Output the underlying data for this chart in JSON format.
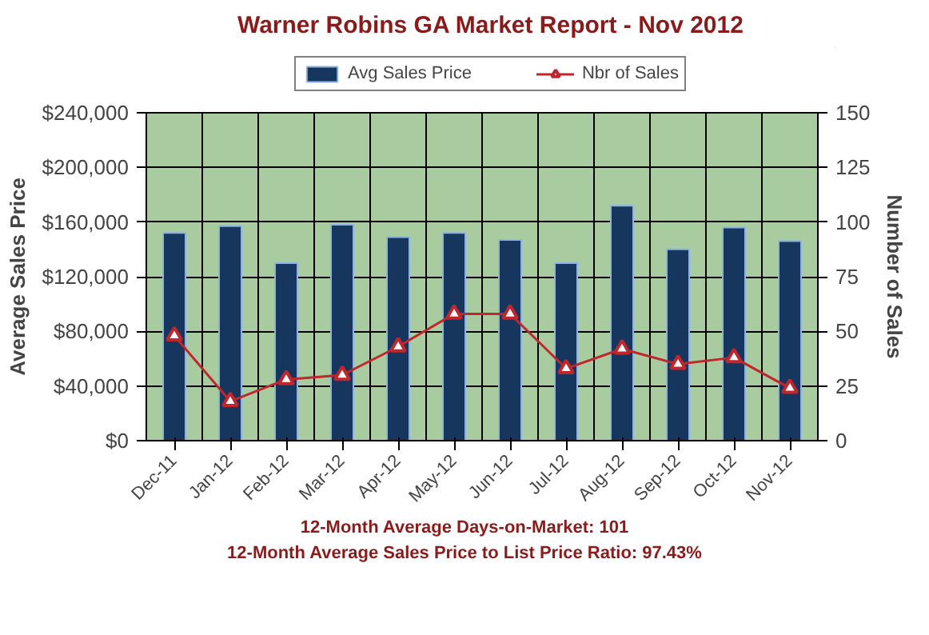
{
  "chart_data": {
    "type": "bar",
    "title": "Warner Robins GA Market Report - Nov 2012",
    "ylabel": "Average Sales Price",
    "y2label": "Number of Sales",
    "categories": [
      "Dec-11",
      "Jan-12",
      "Feb-12",
      "Mar-12",
      "Apr-12",
      "May-12",
      "Jun-12",
      "Jul-12",
      "Aug-12",
      "Sep-12",
      "Oct-12",
      "Nov-12"
    ],
    "series": [
      {
        "name": "Avg Sales Price",
        "color": "#17365d",
        "values": [
          152000,
          157000,
          130000,
          158000,
          149000,
          152000,
          147000,
          130000,
          172000,
          140000,
          156000,
          146000
        ]
      },
      {
        "name": "Nbr of Sales",
        "type": "line",
        "axis": "y2",
        "color": "#c0262c",
        "marker": "triangle",
        "values": [
          48,
          18,
          28,
          30,
          43,
          58,
          58,
          33,
          42,
          35,
          38,
          24
        ]
      }
    ],
    "ylim": [
      0,
      240000
    ],
    "yticks": [
      {
        "value": 0,
        "label": "$0"
      },
      {
        "value": 40000,
        "label": "$40,000"
      },
      {
        "value": 80000,
        "label": "$80,000"
      },
      {
        "value": 120000,
        "label": "$120,000"
      },
      {
        "value": 160000,
        "label": "$160,000"
      },
      {
        "value": 200000,
        "label": "$200,000"
      },
      {
        "value": 240000,
        "label": "$240,000"
      }
    ],
    "y2lim": [
      0,
      150
    ],
    "y2ticks": [
      0,
      25,
      50,
      75,
      100,
      125,
      150
    ],
    "grid": true,
    "legend": "top",
    "annotations": [
      "12-Month Average Days-on-Market: 101",
      "12-Month Average Sales Price to List Price Ratio: 97.43%"
    ]
  }
}
